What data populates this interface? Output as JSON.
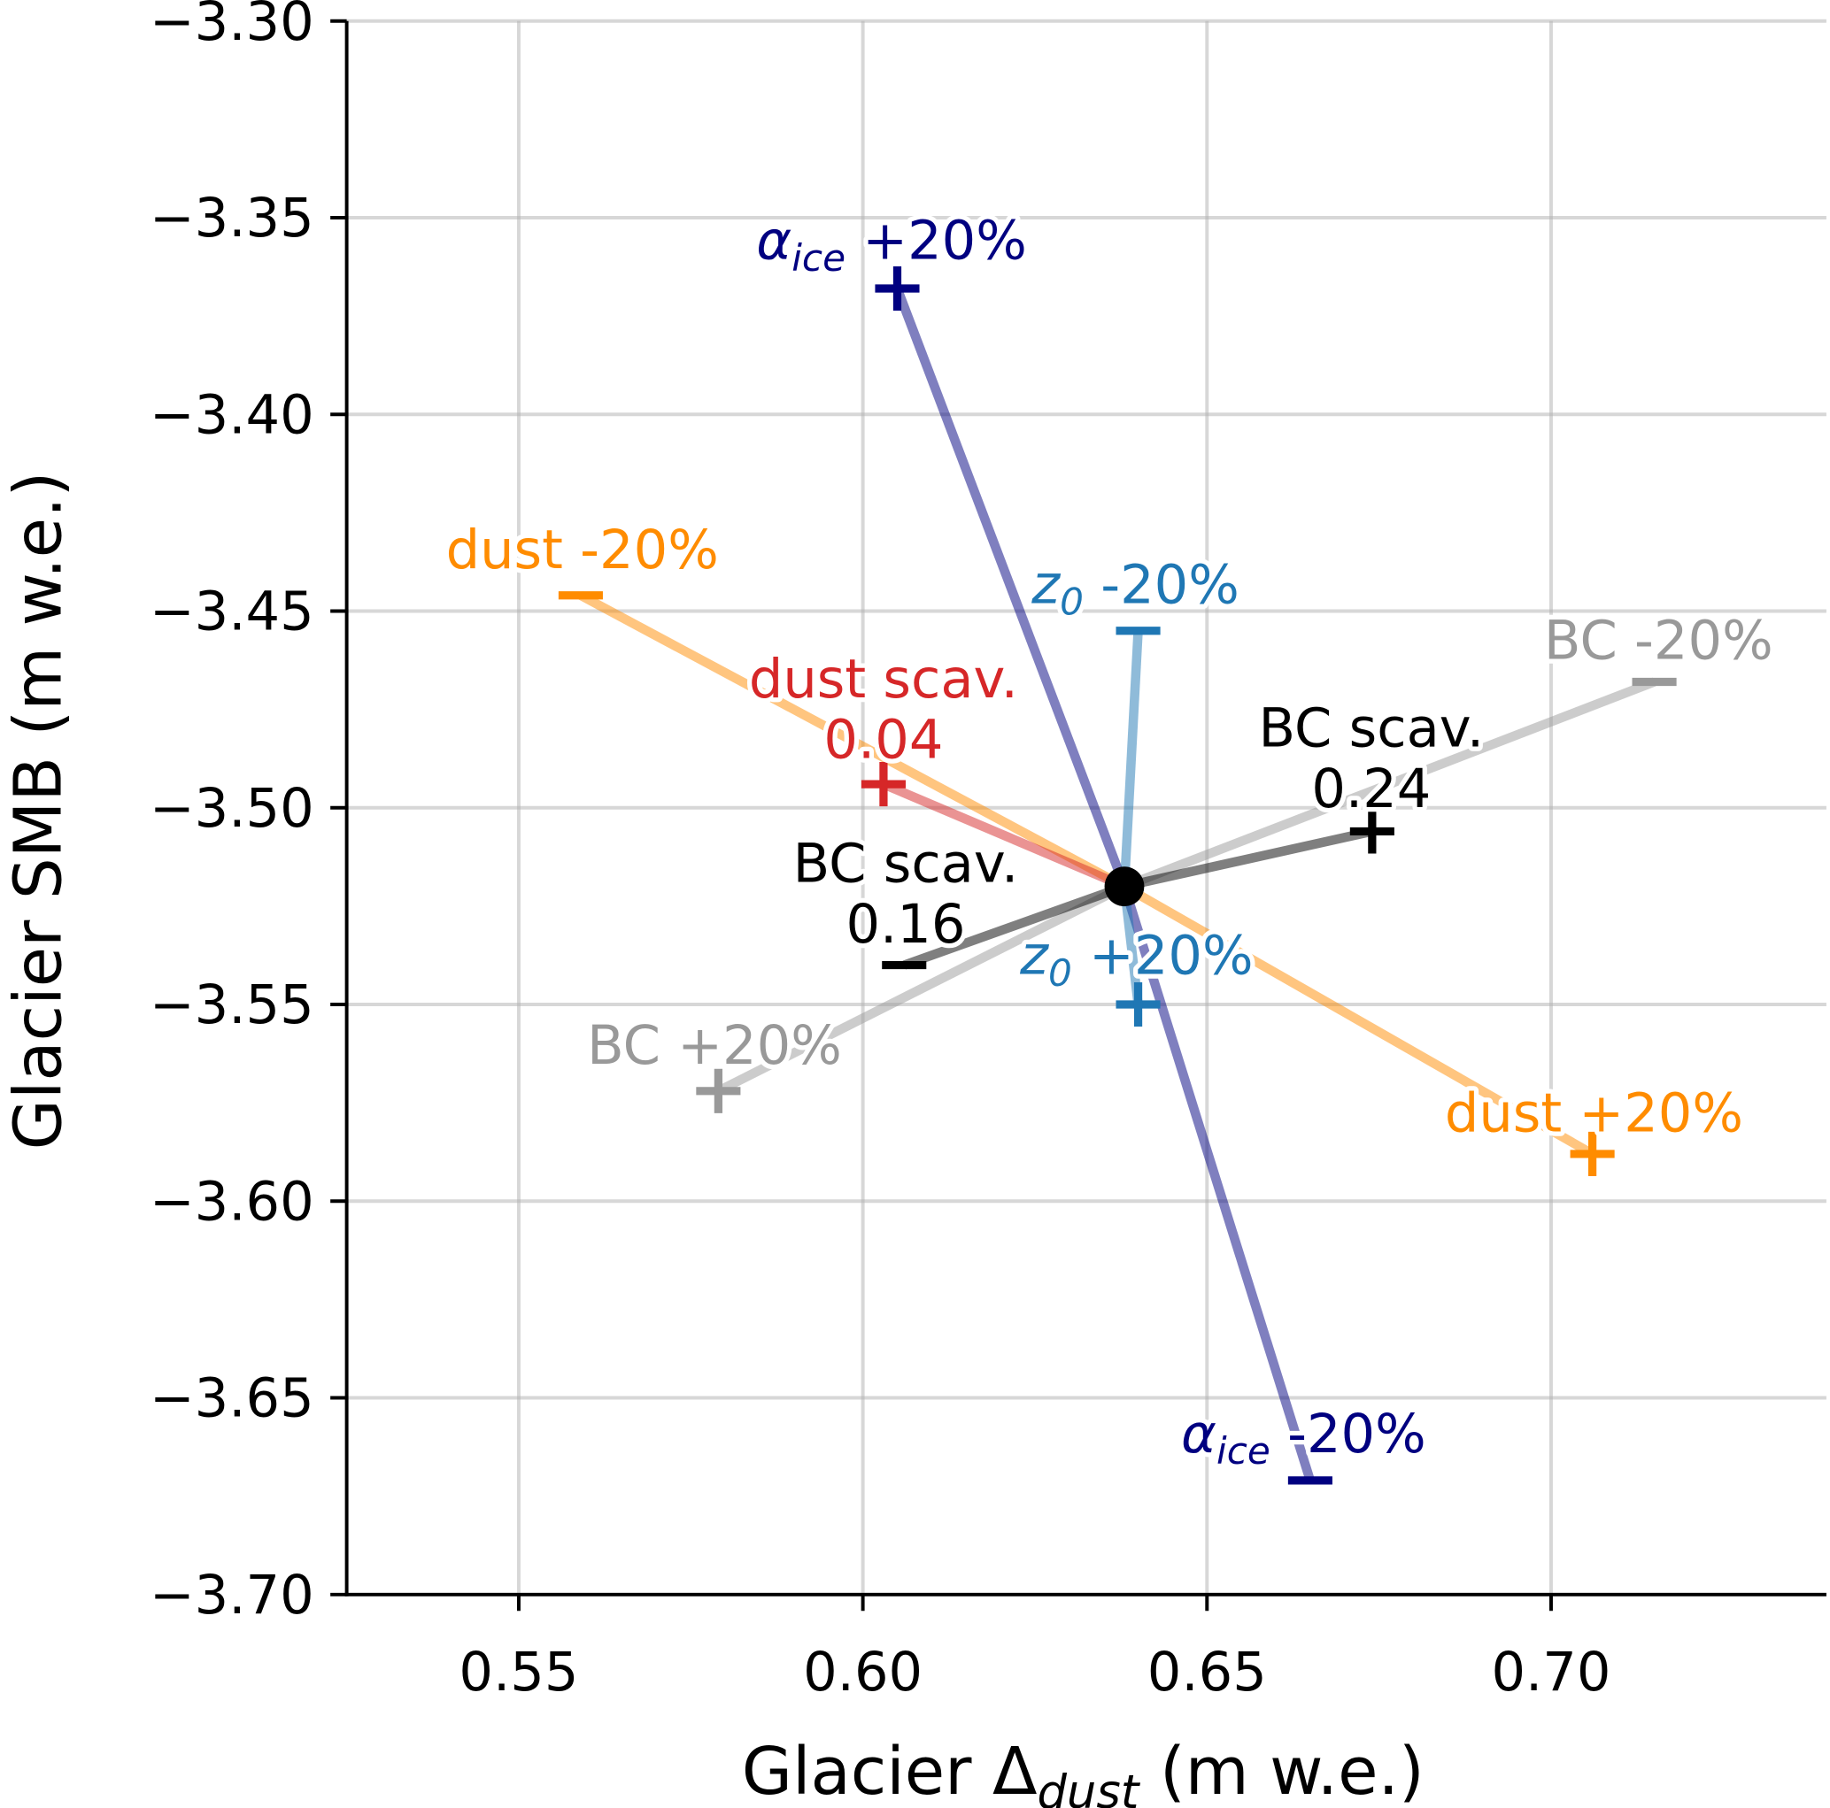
{
  "chart_data": {
    "type": "scatter",
    "xlabel": {
      "prefix": "Glacier Δ",
      "sub": "dust",
      "suffix": " (m w.e.)"
    },
    "ylabel": "Glacier SMB (m w.e.)",
    "xlim": [
      0.525,
      0.74
    ],
    "ylim": [
      -3.7,
      -3.3
    ],
    "xticks": [
      "0.55",
      "0.60",
      "0.65",
      "0.70"
    ],
    "xtick_values": [
      0.55,
      0.6,
      0.65,
      0.7
    ],
    "yticks": [
      "−3.30",
      "−3.35",
      "−3.40",
      "−3.45",
      "−3.50",
      "−3.55",
      "−3.60",
      "−3.65",
      "−3.70"
    ],
    "ytick_values": [
      -3.3,
      -3.35,
      -3.4,
      -3.45,
      -3.5,
      -3.55,
      -3.6,
      -3.65,
      -3.7
    ],
    "grid": true,
    "center": {
      "x": 0.638,
      "y": -3.52,
      "color": "#000000"
    },
    "experiments": [
      {
        "id": "alpha_plus",
        "label": {
          "prefix": "α",
          "sub": "ice",
          "suffix": " +20%"
        },
        "x": 0.605,
        "y": -3.368,
        "marker": "plus",
        "color": "#000080"
      },
      {
        "id": "alpha_minus",
        "label": {
          "prefix": "α",
          "sub": "ice",
          "suffix": " -20%"
        },
        "x": 0.665,
        "y": -3.671,
        "marker": "minus",
        "color": "#000080"
      },
      {
        "id": "dust_minus",
        "label": {
          "prefix": "dust -20%"
        },
        "x": 0.559,
        "y": -3.446,
        "marker": "minus",
        "color": "#ff8c00"
      },
      {
        "id": "dust_plus",
        "label": {
          "prefix": "dust +20%"
        },
        "x": 0.706,
        "y": -3.588,
        "marker": "plus",
        "color": "#ff8c00"
      },
      {
        "id": "z0_minus",
        "label": {
          "prefix": "z",
          "sub": "0",
          "suffix": " -20%"
        },
        "x": 0.64,
        "y": -3.455,
        "marker": "minus",
        "color": "#1f77b4"
      },
      {
        "id": "z0_plus",
        "label": {
          "prefix": "z",
          "sub": "0",
          "suffix": " +20%"
        },
        "x": 0.64,
        "y": -3.55,
        "marker": "plus",
        "color": "#1f77b4"
      },
      {
        "id": "bc_minus",
        "label": {
          "prefix": "BC -20%"
        },
        "x": 0.715,
        "y": -3.468,
        "marker": "minus",
        "color": "#999999"
      },
      {
        "id": "bc_plus",
        "label": {
          "prefix": "BC +20%"
        },
        "x": 0.579,
        "y": -3.572,
        "marker": "plus",
        "color": "#999999"
      },
      {
        "id": "dust_scav",
        "label": {
          "line1": "dust scav.",
          "line2": "0.04"
        },
        "x": 0.603,
        "y": -3.494,
        "marker": "plus",
        "color": "#d62728"
      },
      {
        "id": "bc_scav_024",
        "label": {
          "line1": "BC scav.",
          "line2": "0.24"
        },
        "x": 0.674,
        "y": -3.506,
        "marker": "plus",
        "color": "#000000"
      },
      {
        "id": "bc_scav_016",
        "label": {
          "line1": "BC scav.",
          "line2": "0.16"
        },
        "x": 0.606,
        "y": -3.54,
        "marker": "minus",
        "color": "#000000"
      }
    ]
  }
}
